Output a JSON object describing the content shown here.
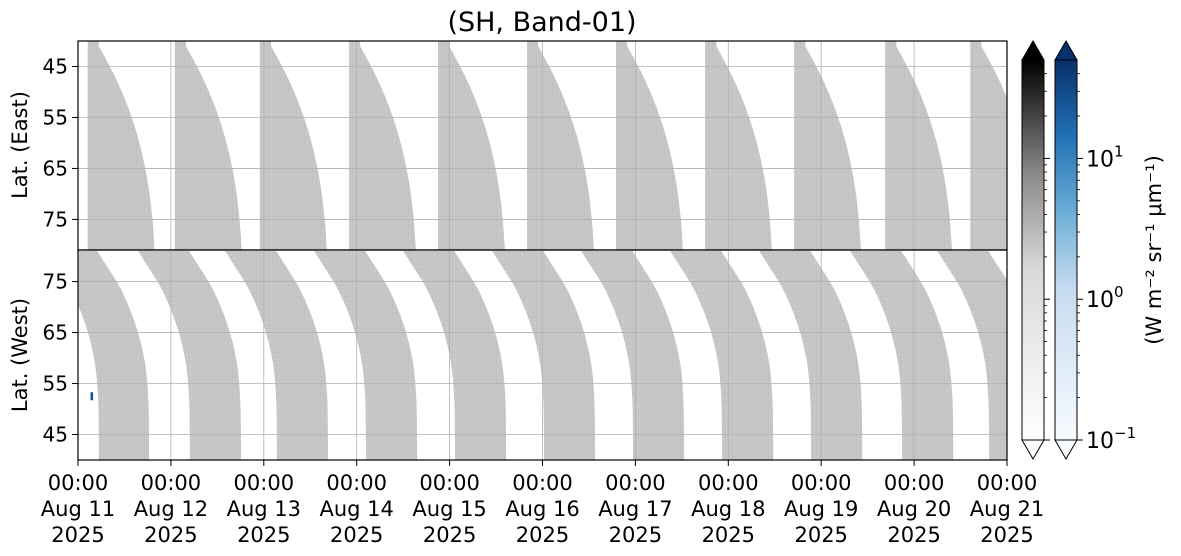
{
  "title": "(SH, Band-01)",
  "chart_data": [
    {
      "type": "heatmap",
      "panel": "east",
      "title": "(SH, Band-01)",
      "ylabel": "Lat. (East)",
      "ylim": [
        40,
        81
      ],
      "yticks": [
        45,
        55,
        65,
        75
      ],
      "ytick_labels": [
        "45",
        "55",
        "65",
        "75"
      ],
      "grid": true,
      "xlim": [
        "2025-08-11 00:00",
        "2025-08-21 00:00"
      ],
      "sweep_days": 0.72,
      "coverage_color": "#c8c8c8",
      "curve_rows": [
        81,
        79,
        77,
        75,
        73,
        71,
        69,
        67,
        65,
        63,
        61,
        59,
        57,
        55,
        53,
        51,
        49,
        47,
        45,
        43,
        41
      ],
      "curve_lag": [
        0,
        0.007,
        0.014,
        0.023,
        0.034,
        0.047,
        0.062,
        0.08,
        0.1,
        0.123,
        0.149,
        0.178,
        0.21,
        0.246,
        0.285,
        0.328,
        0.375,
        0.426,
        0.481,
        0.54,
        0.6
      ],
      "stripes": [
        {
          "start": "2025-08-11 02:30",
          "left_edge": "flat"
        },
        {
          "start": "2025-08-12 01:00",
          "left_edge": "flat"
        },
        {
          "start": "2025-08-12 23:00",
          "left_edge": "flat"
        },
        {
          "start": "2025-08-13 22:00",
          "left_edge": "flat"
        },
        {
          "start": "2025-08-14 21:00",
          "left_edge": "flat"
        },
        {
          "start": "2025-08-15 20:00",
          "left_edge": "flat"
        },
        {
          "start": "2025-08-16 19:00",
          "left_edge": "flat"
        },
        {
          "start": "2025-08-17 18:00",
          "left_edge": "flat"
        },
        {
          "start": "2025-08-18 17:00",
          "left_edge": "flat"
        },
        {
          "start": "2025-08-19 16:30",
          "left_edge": "flat"
        },
        {
          "start": "2025-08-20 14:30",
          "left_edge": "flat"
        }
      ]
    },
    {
      "type": "heatmap",
      "panel": "west",
      "ylabel": "Lat. (West)",
      "ylim": [
        81,
        40
      ],
      "yticks": [
        75,
        65,
        55,
        45
      ],
      "ytick_labels": [
        "75",
        "65",
        "55",
        "45"
      ],
      "grid": true,
      "xlim": [
        "2025-08-11 00:00",
        "2025-08-21 00:00"
      ],
      "sweep_days": 0.55,
      "coverage_color": "#c8c8c8",
      "curve_rows": [
        81,
        79,
        77,
        75,
        73,
        71,
        69,
        67,
        65,
        63,
        61,
        59,
        57,
        55,
        53,
        51,
        49,
        47,
        45,
        43,
        41
      ],
      "curve_lag": [
        0,
        0.07,
        0.14,
        0.21,
        0.27,
        0.32,
        0.365,
        0.405,
        0.44,
        0.47,
        0.495,
        0.515,
        0.53,
        0.54,
        0.547,
        0.552,
        0.555,
        0.556,
        0.557,
        0.558,
        0.558
      ],
      "stripes": [
        {
          "start": "2025-08-10 16:00",
          "width_days": 0.54
        },
        {
          "start": "2025-08-11 15:30",
          "width_days": 0.55
        },
        {
          "start": "2025-08-12 14:00",
          "width_days": 0.55
        },
        {
          "start": "2025-08-13 13:00",
          "width_days": 0.55
        },
        {
          "start": "2025-08-14 12:00",
          "width_days": 0.55
        },
        {
          "start": "2025-08-15 11:00",
          "width_days": 0.55
        },
        {
          "start": "2025-08-16 10:00",
          "width_days": 0.55
        },
        {
          "start": "2025-08-17 09:00",
          "width_days": 0.55
        },
        {
          "start": "2025-08-18 08:00",
          "width_days": 0.55
        },
        {
          "start": "2025-08-19 07:30",
          "width_days": 0.55
        },
        {
          "start": "2025-08-20 06:00",
          "width_days": 0.55
        }
      ],
      "outlier": {
        "time": "2025-08-11 03:30",
        "lat": 52.5,
        "color": "#08519c"
      }
    }
  ],
  "x_axis": {
    "ticks": [
      {
        "time": "00:00",
        "date": "Aug 11",
        "year": "2025"
      },
      {
        "time": "00:00",
        "date": "Aug 12",
        "year": "2025"
      },
      {
        "time": "00:00",
        "date": "Aug 13",
        "year": "2025"
      },
      {
        "time": "00:00",
        "date": "Aug 14",
        "year": "2025"
      },
      {
        "time": "00:00",
        "date": "Aug 15",
        "year": "2025"
      },
      {
        "time": "00:00",
        "date": "Aug 16",
        "year": "2025"
      },
      {
        "time": "00:00",
        "date": "Aug 17",
        "year": "2025"
      },
      {
        "time": "00:00",
        "date": "Aug 18",
        "year": "2025"
      },
      {
        "time": "00:00",
        "date": "Aug 19",
        "year": "2025"
      },
      {
        "time": "00:00",
        "date": "Aug 20",
        "year": "2025"
      },
      {
        "time": "00:00",
        "date": "Aug 21",
        "year": "2025"
      }
    ]
  },
  "colorbars": {
    "label": "(W m⁻² sr⁻¹ μm⁻¹)",
    "scale": "log",
    "range": [
      0.1,
      50
    ],
    "extend": "both",
    "ticks": [
      {
        "base": "10",
        "exp": "1",
        "value": 10
      },
      {
        "base": "10",
        "exp": "0",
        "value": 1
      },
      {
        "base": "10",
        "exp": "−1",
        "value": 0.1
      }
    ],
    "gray": {
      "colormap": "Greys",
      "top_color": "#000000",
      "bottom_color": "#ffffff"
    },
    "blue": {
      "colormap": "Blues",
      "top_color": "#08306b",
      "bottom_color": "#f7fbff"
    }
  }
}
